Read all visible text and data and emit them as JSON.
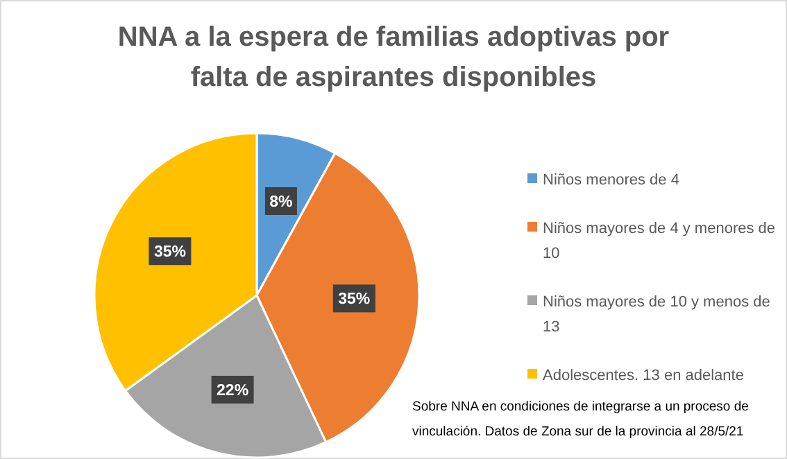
{
  "chart_data": {
    "type": "pie",
    "title": "NNA a la espera de familias adoptivas por falta de aspirantes disponibles",
    "categories": [
      "Niños menores de 4",
      "Niños mayores de 4 y menores de 10",
      "Niños mayores de 10 y menos de 13",
      "Adolescentes. 13 en adelante"
    ],
    "values": [
      8,
      35,
      22,
      35
    ],
    "colors": [
      "#5b9bd5",
      "#ed7d31",
      "#a5a5a5",
      "#ffc000"
    ],
    "value_labels": [
      "8%",
      "35%",
      "22%",
      "35%"
    ],
    "legend": "right",
    "annotations": [
      "Sobre NNA en condiciones de integrarse a un proceso de vinculación. Datos de Zona sur de la provincia al 28/5/21"
    ]
  }
}
